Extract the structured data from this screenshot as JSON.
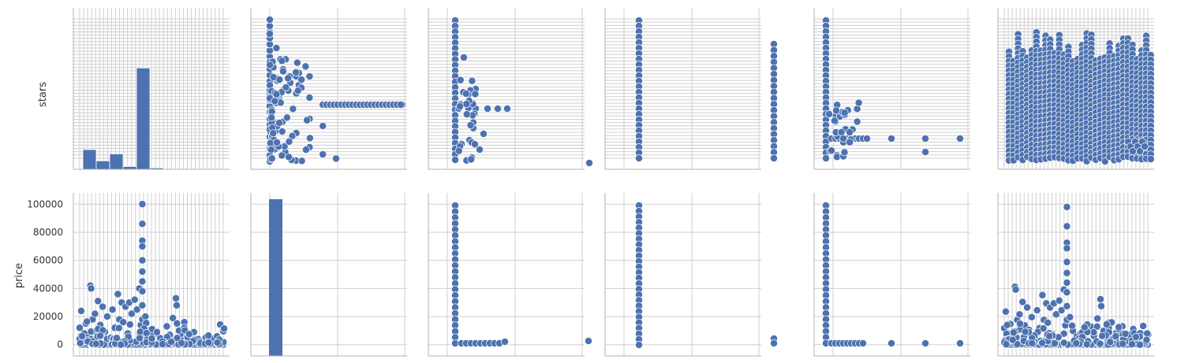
{
  "chart_data": {
    "type": "pairplot",
    "variables": [
      "stars",
      "price"
    ],
    "ylabels": [
      "stars",
      "price"
    ],
    "accent_color": "#4c72b0",
    "grid": true,
    "price_axis": {
      "ylim": [
        -8000,
        108000
      ],
      "ticks": [
        0,
        20000,
        40000,
        60000,
        80000,
        100000
      ],
      "tick_labels": [
        "0",
        "20000",
        "40000",
        "60000",
        "80000",
        "100000"
      ]
    },
    "stars_histogram": {
      "type": "bar",
      "bins": [
        {
          "x": 0,
          "count": 0.14
        },
        {
          "x": 1,
          "count": 0.06
        },
        {
          "x": 2,
          "count": 0.11
        },
        {
          "x": 3,
          "count": 0.02
        },
        {
          "x": 4,
          "count": 0.72
        },
        {
          "x": 5,
          "count": 0.01
        }
      ]
    },
    "price_histogram": {
      "type": "bar",
      "bins": [
        {
          "x": 0,
          "count": 1.0
        }
      ]
    },
    "stars_vs_price": [
      {
        "x": 0.0,
        "y": 12000
      },
      {
        "x": 0.02,
        "y": 24000
      },
      {
        "x": 0.04,
        "y": 3000
      },
      {
        "x": 0.06,
        "y": 8000
      },
      {
        "x": 0.08,
        "y": 15000
      },
      {
        "x": 0.1,
        "y": 5000
      },
      {
        "x": 0.14,
        "y": 42000
      },
      {
        "x": 0.15,
        "y": 40000
      },
      {
        "x": 0.17,
        "y": 18000
      },
      {
        "x": 0.2,
        "y": 22000
      },
      {
        "x": 0.22,
        "y": 2000
      },
      {
        "x": 0.24,
        "y": 31000
      },
      {
        "x": 0.27,
        "y": 14000
      },
      {
        "x": 0.3,
        "y": 27000
      },
      {
        "x": 0.33,
        "y": 9000
      },
      {
        "x": 0.36,
        "y": 20000
      },
      {
        "x": 0.4,
        "y": 5000
      },
      {
        "x": 0.43,
        "y": 25000
      },
      {
        "x": 0.46,
        "y": 12000
      },
      {
        "x": 0.5,
        "y": 36000
      },
      {
        "x": 0.52,
        "y": 18000
      },
      {
        "x": 0.55,
        "y": 30000
      },
      {
        "x": 0.57,
        "y": 16000
      },
      {
        "x": 0.6,
        "y": 27000
      },
      {
        "x": 0.63,
        "y": 8000
      },
      {
        "x": 0.65,
        "y": 30000
      },
      {
        "x": 0.68,
        "y": 22000
      },
      {
        "x": 0.72,
        "y": 32000
      },
      {
        "x": 0.75,
        "y": 25000
      },
      {
        "x": 0.78,
        "y": 40000
      },
      {
        "x": 0.8,
        "y": 14000
      },
      {
        "x": 0.82,
        "y": 100000
      },
      {
        "x": 0.82,
        "y": 86000
      },
      {
        "x": 0.82,
        "y": 74000
      },
      {
        "x": 0.82,
        "y": 70000
      },
      {
        "x": 0.82,
        "y": 60000
      },
      {
        "x": 0.82,
        "y": 52000
      },
      {
        "x": 0.82,
        "y": 45000
      },
      {
        "x": 0.82,
        "y": 38000
      },
      {
        "x": 0.82,
        "y": 28000
      },
      {
        "x": 0.82,
        "y": 18000
      },
      {
        "x": 0.86,
        "y": 20000
      },
      {
        "x": 0.9,
        "y": 10000
      },
      {
        "x": 0.95,
        "y": 6000
      },
      {
        "x": 1.0,
        "y": 8000
      },
      {
        "x": 1.05,
        "y": 4000
      },
      {
        "x": 1.1,
        "y": 2000
      },
      {
        "x": 1.14,
        "y": 13000
      },
      {
        "x": 1.18,
        "y": 7000
      },
      {
        "x": 1.22,
        "y": 19000
      },
      {
        "x": 1.26,
        "y": 33000
      },
      {
        "x": 1.27,
        "y": 28000
      },
      {
        "x": 1.3,
        "y": 10000
      },
      {
        "x": 1.34,
        "y": 6000
      },
      {
        "x": 1.37,
        "y": 16000
      },
      {
        "x": 1.37,
        "y": 12000
      },
      {
        "x": 1.4,
        "y": 4000
      },
      {
        "x": 1.45,
        "y": 5000
      },
      {
        "x": 1.5,
        "y": 3000
      },
      {
        "x": 1.55,
        "y": 4000
      },
      {
        "x": 1.6,
        "y": 2000
      },
      {
        "x": 1.65,
        "y": 5000
      },
      {
        "x": 1.7,
        "y": 1000
      },
      {
        "x": 1.75,
        "y": 2000
      },
      {
        "x": 1.8,
        "y": 1000
      },
      {
        "x": 1.85,
        "y": 500
      }
    ],
    "price_vs_stars": [
      {
        "x": 0.0,
        "y": 0.0
      },
      {
        "x": 0.0,
        "y": 0.1
      },
      {
        "x": 0.0,
        "y": 0.3
      },
      {
        "x": 0.0,
        "y": 0.5
      },
      {
        "x": 0.0,
        "y": 0.7
      },
      {
        "x": 0.0,
        "y": 0.9
      },
      {
        "x": 0.05,
        "y": 0.8
      },
      {
        "x": 0.08,
        "y": 0.72
      },
      {
        "x": 0.12,
        "y": 0.72
      },
      {
        "x": 0.1,
        "y": 0.65
      },
      {
        "x": 0.15,
        "y": 0.6
      },
      {
        "x": 0.2,
        "y": 0.6
      },
      {
        "x": 0.3,
        "y": 0.6
      },
      {
        "x": 0.1,
        "y": 0.5
      },
      {
        "x": 0.2,
        "y": 0.48
      },
      {
        "x": 0.3,
        "y": 0.45
      },
      {
        "x": 0.5,
        "y": 0.4
      },
      {
        "x": 0.6,
        "y": 0.4
      },
      {
        "x": 0.7,
        "y": 0.4
      },
      {
        "x": 0.8,
        "y": 0.4
      },
      {
        "x": 0.9,
        "y": 0.4
      },
      {
        "x": 1.0,
        "y": 0.4
      },
      {
        "x": 0.3,
        "y": 0.3
      },
      {
        "x": 0.2,
        "y": 0.2
      },
      {
        "x": 0.4,
        "y": 0.25
      },
      {
        "x": 0.3,
        "y": 0.1
      },
      {
        "x": 0.4,
        "y": 0.05
      },
      {
        "x": 0.5,
        "y": 0.02
      }
    ]
  }
}
